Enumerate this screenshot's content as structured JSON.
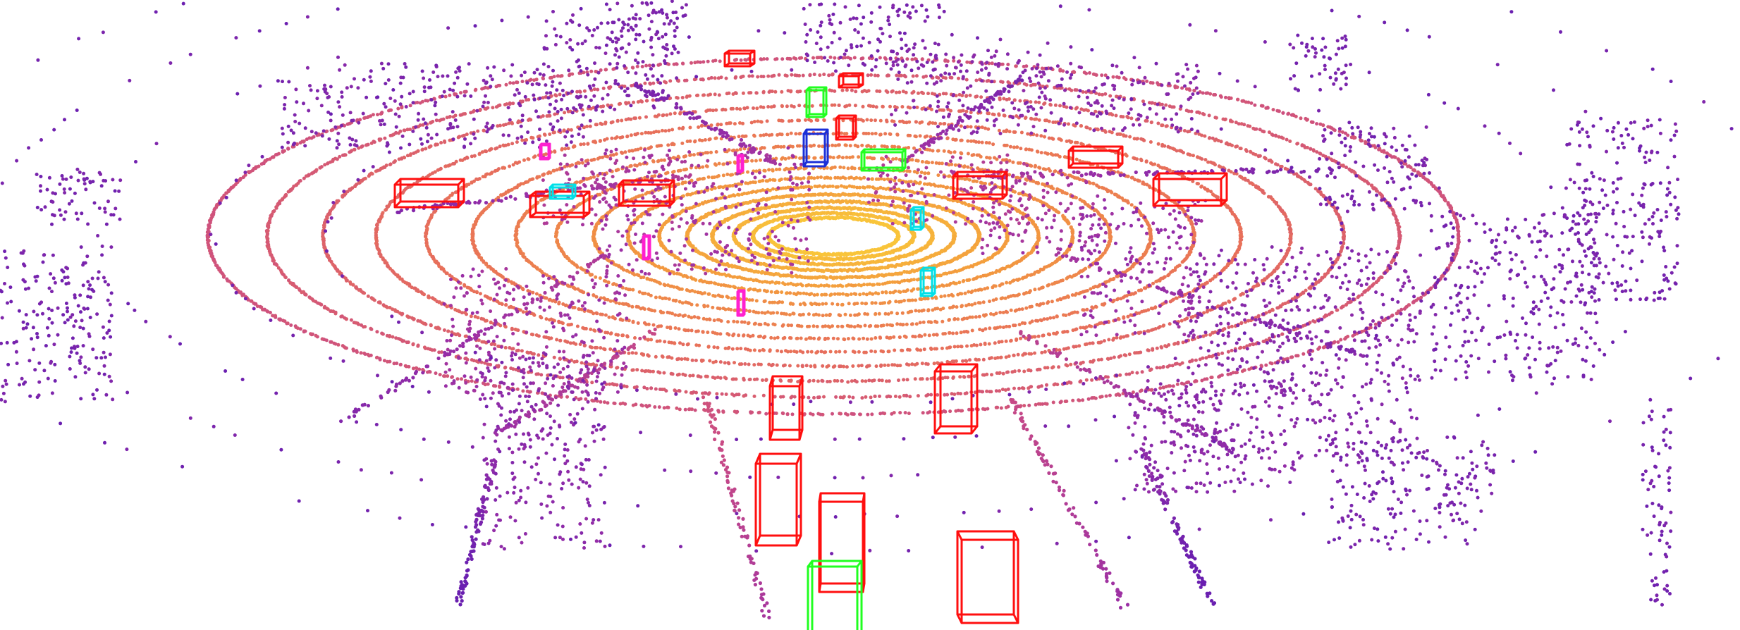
{
  "scene": {
    "type": "lidar-point-cloud",
    "background": "#ffffff",
    "point_colormap": [
      "#f9c53a",
      "#f39a3e",
      "#e8705a",
      "#c84a86",
      "#9a2fa6",
      "#6a1fb0"
    ],
    "box_colors": {
      "car": "#ff0f0f",
      "bicycle": "#20ff20",
      "pedestrian": "#00e0e8",
      "cone": "#ff20d0",
      "truck": "#1a2fd8"
    }
  }
}
